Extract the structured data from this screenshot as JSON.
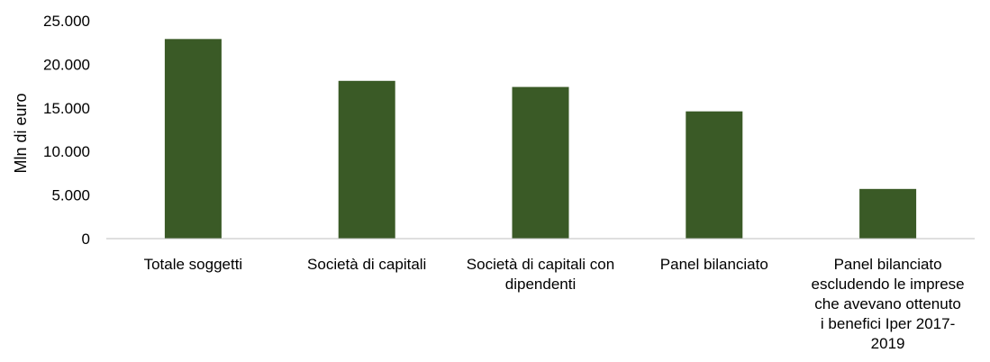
{
  "chart_data": {
    "type": "bar",
    "title": "",
    "xlabel": "",
    "ylabel": "Mln di euro",
    "ylim": [
      0,
      25000
    ],
    "yticks": [
      0,
      5000,
      10000,
      15000,
      20000,
      25000
    ],
    "ytick_labels": [
      "0",
      "5.000",
      "10.000",
      "15.000",
      "20.000",
      "25.000"
    ],
    "grid": false,
    "bar_color": "#3a5a26",
    "categories": [
      "Totale soggetti",
      "Società di capitali",
      "Società di capitali con dipendenti",
      "Panel bilanciato",
      "Panel bilanciato escludendo le imprese che avevano ottenuto i benefici Iper 2017-2019"
    ],
    "category_lines": [
      [
        "Totale soggetti"
      ],
      [
        "Società di capitali"
      ],
      [
        "Società di capitali con",
        "dipendenti"
      ],
      [
        "Panel bilanciato"
      ],
      [
        "Panel bilanciato",
        "escludendo le imprese",
        "che avevano ottenuto",
        "i benefici Iper 2017-",
        "2019"
      ]
    ],
    "values": [
      22900,
      18100,
      17400,
      14600,
      5700
    ]
  }
}
